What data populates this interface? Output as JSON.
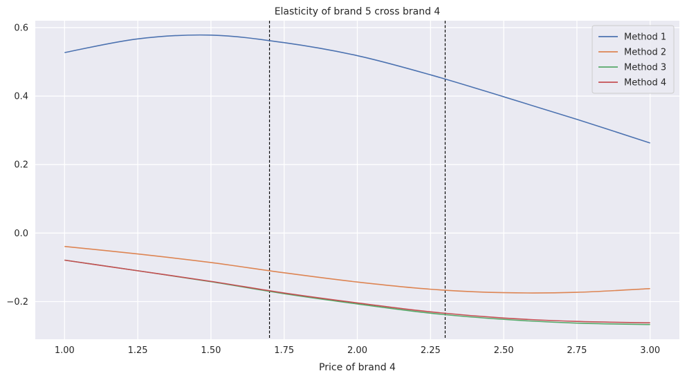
{
  "chart_data": {
    "type": "line",
    "title": "Elasticity of brand 5 cross brand 4",
    "xlabel": "Price of brand 4",
    "ylabel": "",
    "xlim": [
      0.9,
      3.1
    ],
    "ylim": [
      -0.31,
      0.62
    ],
    "xticks": [
      1.0,
      1.25,
      1.5,
      1.75,
      2.0,
      2.25,
      2.5,
      2.75,
      3.0
    ],
    "xtick_labels": [
      "1.00",
      "1.25",
      "1.50",
      "1.75",
      "2.00",
      "2.25",
      "2.50",
      "2.75",
      "3.00"
    ],
    "yticks": [
      -0.2,
      0.0,
      0.2,
      0.4,
      0.6
    ],
    "ytick_labels": [
      "−0.2",
      "0.0",
      "0.2",
      "0.4",
      "0.6"
    ],
    "grid": true,
    "legend_position": "top-right",
    "vlines": [
      1.7,
      2.3
    ],
    "x": [
      1.0,
      1.25,
      1.5,
      1.75,
      2.0,
      2.25,
      2.5,
      2.75,
      3.0
    ],
    "series": [
      {
        "name": "Method 1",
        "color": "#4c72b0",
        "values": [
          0.527,
          0.567,
          0.578,
          0.556,
          0.518,
          0.462,
          0.398,
          0.332,
          0.263
        ]
      },
      {
        "name": "Method 2",
        "color": "#dd8452",
        "values": [
          -0.039,
          -0.061,
          -0.086,
          -0.116,
          -0.143,
          -0.164,
          -0.174,
          -0.173,
          -0.162
        ]
      },
      {
        "name": "Method 3",
        "color": "#55a868",
        "values": [
          -0.079,
          -0.11,
          -0.142,
          -0.177,
          -0.207,
          -0.234,
          -0.252,
          -0.263,
          -0.267
        ]
      },
      {
        "name": "Method 4",
        "color": "#c44e52",
        "values": [
          -0.079,
          -0.11,
          -0.141,
          -0.175,
          -0.204,
          -0.23,
          -0.248,
          -0.258,
          -0.262
        ]
      }
    ]
  }
}
